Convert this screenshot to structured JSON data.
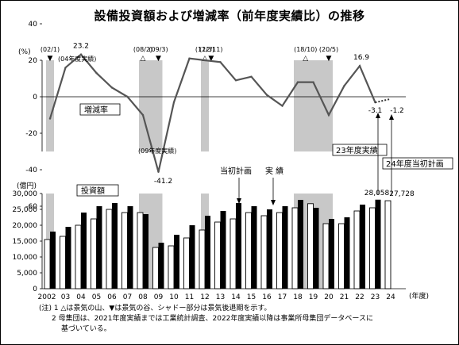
{
  "title": "設備投資額および増減率（前年度実績比）の推移",
  "chart_data": [
    {
      "type": "line",
      "name": "growth_rate",
      "label": "増減率",
      "yunit": "(%)",
      "ylim": [
        -60,
        40
      ],
      "yticks": [
        40,
        20,
        0,
        -20,
        -40,
        -60
      ],
      "x": [
        2002,
        2003,
        2004,
        2005,
        2006,
        2007,
        2008,
        2009,
        2010,
        2011,
        2012,
        2013,
        2014,
        2015,
        2016,
        2017,
        2018,
        2019,
        2020,
        2021,
        2022,
        2023
      ],
      "values": [
        -12,
        16,
        23.2,
        13,
        5,
        0,
        -10,
        -41.2,
        -3,
        21,
        20,
        19,
        9,
        11,
        1,
        -5,
        8,
        8,
        -10,
        6,
        16.9,
        -3.1
      ],
      "plan_point": {
        "x": 2024,
        "value": -1.2
      },
      "labels": {
        "2004": "23.2",
        "2009": "-41.2",
        "2022": "16.9",
        "2023": "-3.1",
        "2024": "-1.2"
      },
      "annotations": [
        "(04年度実績)",
        "(09年度実績)"
      ],
      "peaks_troughs": [
        {
          "label": "(02/1)",
          "mark": "▼",
          "x": 2002
        },
        {
          "label": "(08/2)",
          "mark": "△",
          "x": 2008
        },
        {
          "label": "(09/3)",
          "mark": "▼",
          "x": 2009
        },
        {
          "label": "(12/3)",
          "mark": "△",
          "x": 2012
        },
        {
          "label": "(12/11)",
          "mark": "▼",
          "x": 2012.4
        },
        {
          "label": "(18/10)",
          "mark": "△",
          "x": 2018.5
        },
        {
          "label": "(20/5)",
          "mark": "▼",
          "x": 2020
        }
      ],
      "recessions": [
        [
          2002,
          2002
        ],
        [
          2008,
          2009
        ],
        [
          2012,
          2012
        ],
        [
          2018,
          2020
        ]
      ]
    },
    {
      "type": "bar",
      "name": "investment",
      "label": "投資額",
      "yunit": "(億円)",
      "ylim": [
        0,
        30000
      ],
      "yticks": [
        30000,
        25000,
        20000,
        15000,
        10000,
        5000,
        0
      ],
      "categories": [
        "2002",
        "03",
        "04",
        "05",
        "06",
        "07",
        "08",
        "09",
        "10",
        "11",
        "12",
        "13",
        "14",
        "15",
        "16",
        "17",
        "18",
        "19",
        "20",
        "21",
        "22",
        "23",
        "24"
      ],
      "xlabel": "(年度)",
      "series": [
        {
          "name": "当初計画",
          "values": [
            15500,
            16500,
            20000,
            22000,
            25000,
            24000,
            24000,
            13000,
            13500,
            16000,
            18500,
            21000,
            22000,
            24000,
            23000,
            24000,
            25500,
            26800,
            20500,
            20500,
            24500,
            25500,
            27728
          ]
        },
        {
          "name": "実績",
          "values": [
            18000,
            19500,
            24000,
            26000,
            27000,
            26000,
            23500,
            14500,
            17000,
            20000,
            23000,
            24500,
            27000,
            26000,
            25000,
            26000,
            28000,
            25500,
            22000,
            22500,
            26500,
            28058,
            null
          ]
        }
      ],
      "data_labels": {
        "23": "28,058",
        "24": "27,728"
      },
      "legend_labels": [
        "当初計画",
        "実 績"
      ],
      "callouts": [
        "23年度実績",
        "24年度当初計画"
      ]
    }
  ],
  "notes": [
    "(注) 1 △は景気の山、▼は景気の谷、シャドー部分は景気後退期を示す。",
    "2 母集団は、2021年度実績までは工業統計調査、2022年度実績以降は事業所母集団データベースに",
    "基づいている。"
  ]
}
